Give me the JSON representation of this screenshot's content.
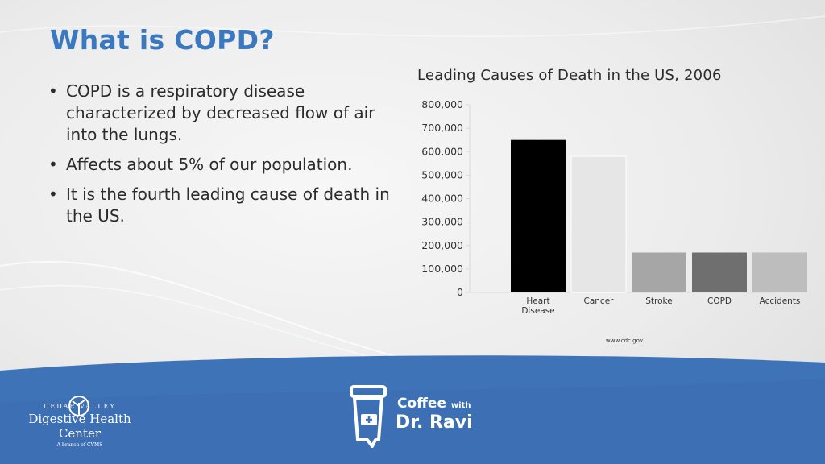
{
  "slide": {
    "title": "What is COPD?",
    "bullets": [
      "COPD is a respiratory disease characterized by decreased flow of air into the lungs.",
      "Affects about 5% of our population.",
      "It is the fourth leading cause of death in the US."
    ],
    "source": "www.cdc.gov"
  },
  "chart_data": {
    "type": "bar",
    "title": "Leading Causes of Death in the US, 2006",
    "categories": [
      "Heart Disease",
      "Cancer",
      "Stroke",
      "COPD",
      "Accidents"
    ],
    "values": [
      650000,
      580000,
      170000,
      170000,
      170000
    ],
    "bar_colors": [
      "#000000",
      "#e6e6e6",
      "#a6a6a6",
      "#6f6f6f",
      "#bdbdbd"
    ],
    "ylim": [
      0,
      800000
    ],
    "yticks": [
      0,
      100000,
      200000,
      300000,
      400000,
      500000,
      600000,
      700000,
      800000
    ],
    "ytick_labels": [
      "0",
      "100,000",
      "200,000",
      "300,000",
      "400,000",
      "500,000",
      "600,000",
      "700,000",
      "800,000"
    ],
    "grid": false,
    "legend": "none"
  },
  "footer": {
    "org_top": "CEDAR VALLEY",
    "org_name": "Digestive Health Center",
    "org_sub": "A branch of CVMS",
    "show_coffee": "Coffee",
    "show_with": "with",
    "show_host": "Dr. Ravi",
    "colors": {
      "band": "#3f73b8",
      "band_dark": "#2f5e9f",
      "title": "#3a78c0"
    }
  }
}
